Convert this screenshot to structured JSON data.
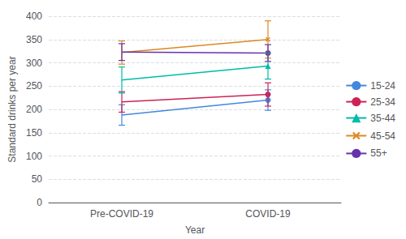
{
  "chart_data": {
    "type": "line",
    "xlabel": "Year",
    "ylabel": "Standard drinks per year",
    "categories": [
      "Pre-COVID-19",
      "COVID-19"
    ],
    "series": [
      {
        "name": "15-24",
        "color": "#4488DD",
        "marker": "circle",
        "values": [
          188,
          220
        ],
        "errors": [
          22,
          22
        ]
      },
      {
        "name": "25-34",
        "color": "#CC2255",
        "marker": "circle",
        "values": [
          216,
          232
        ],
        "errors": [
          22,
          25
        ]
      },
      {
        "name": "35-44",
        "color": "#00BBAA",
        "marker": "triangle",
        "values": [
          263,
          293
        ],
        "errors": [
          28,
          28
        ]
      },
      {
        "name": "45-54",
        "color": "#DD8822",
        "marker": "x",
        "values": [
          322,
          350
        ],
        "errors": [
          25,
          40
        ]
      },
      {
        "name": "55+",
        "color": "#6633AA",
        "marker": "circle",
        "values": [
          323,
          321
        ],
        "errors": [
          18,
          18
        ]
      }
    ],
    "ylim": [
      0,
      400
    ],
    "yticks": [
      0,
      50,
      100,
      150,
      200,
      250,
      300,
      350,
      400
    ],
    "grid": true,
    "legend": "right"
  }
}
